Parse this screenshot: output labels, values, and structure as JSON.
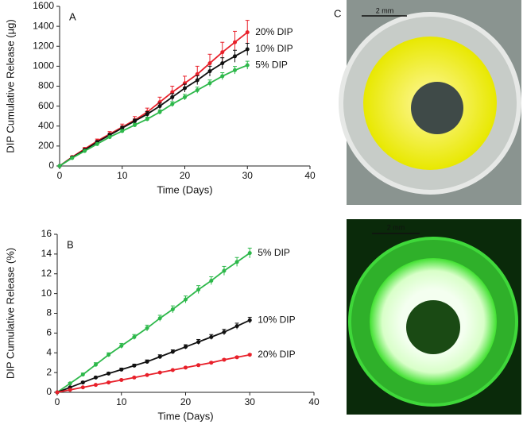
{
  "chart_data": [
    {
      "type": "line",
      "panel_label": "A",
      "x_label": "Time (Days)",
      "y_label": "DIP Cumulative Release (µg)",
      "x": [
        0,
        2,
        4,
        6,
        8,
        10,
        12,
        14,
        16,
        18,
        20,
        22,
        24,
        26,
        28,
        30
      ],
      "xlim": [
        0,
        40
      ],
      "xticks": [
        0,
        10,
        20,
        30,
        40
      ],
      "ylim": [
        0,
        1600
      ],
      "yticks": [
        0,
        200,
        400,
        600,
        800,
        1000,
        1200,
        1400,
        1600
      ],
      "series": [
        {
          "name": "20% DIP",
          "color": "#e8202a",
          "values": [
            0,
            90,
            170,
            250,
            320,
            390,
            460,
            540,
            640,
            740,
            830,
            920,
            1030,
            1140,
            1240,
            1340
          ],
          "errors": [
            0,
            10,
            15,
            20,
            25,
            30,
            35,
            40,
            50,
            60,
            70,
            80,
            90,
            100,
            110,
            120
          ]
        },
        {
          "name": "10% DIP",
          "color": "#111111",
          "values": [
            0,
            85,
            160,
            240,
            310,
            380,
            450,
            520,
            600,
            690,
            780,
            860,
            950,
            1030,
            1100,
            1170
          ],
          "errors": [
            0,
            8,
            10,
            12,
            15,
            18,
            20,
            25,
            30,
            35,
            40,
            45,
            50,
            55,
            60,
            60
          ]
        },
        {
          "name": "5% DIP",
          "color": "#2db84a",
          "values": [
            0,
            80,
            150,
            220,
            290,
            350,
            410,
            470,
            540,
            620,
            690,
            760,
            830,
            900,
            960,
            1010
          ],
          "errors": [
            0,
            5,
            8,
            10,
            12,
            15,
            18,
            20,
            22,
            25,
            28,
            30,
            32,
            35,
            38,
            40
          ]
        }
      ]
    },
    {
      "type": "line",
      "panel_label": "B",
      "x_label": "Time (Days)",
      "y_label": "DIP Cumulative Release (%)",
      "x": [
        0,
        2,
        4,
        6,
        8,
        10,
        12,
        14,
        16,
        18,
        20,
        22,
        24,
        26,
        28,
        30
      ],
      "xlim": [
        0,
        40
      ],
      "xticks": [
        0,
        10,
        20,
        30,
        40
      ],
      "ylim": [
        0,
        16
      ],
      "yticks": [
        0,
        2,
        4,
        6,
        8,
        10,
        12,
        14,
        16
      ],
      "series": [
        {
          "name": "5% DIP",
          "color": "#2db84a",
          "values": [
            0,
            0.9,
            1.8,
            2.8,
            3.8,
            4.7,
            5.6,
            6.5,
            7.5,
            8.4,
            9.4,
            10.4,
            11.3,
            12.3,
            13.2,
            14.1
          ],
          "errors": [
            0,
            0.1,
            0.15,
            0.2,
            0.2,
            0.25,
            0.25,
            0.3,
            0.3,
            0.35,
            0.35,
            0.4,
            0.4,
            0.45,
            0.45,
            0.5
          ]
        },
        {
          "name": "10% DIP",
          "color": "#111111",
          "values": [
            0,
            0.5,
            1.0,
            1.5,
            1.9,
            2.3,
            2.7,
            3.1,
            3.6,
            4.1,
            4.6,
            5.1,
            5.6,
            6.1,
            6.7,
            7.3
          ],
          "errors": [
            0,
            0.05,
            0.1,
            0.1,
            0.12,
            0.15,
            0.15,
            0.18,
            0.2,
            0.2,
            0.22,
            0.25,
            0.25,
            0.28,
            0.3,
            0.3
          ]
        },
        {
          "name": "20% DIP",
          "color": "#e8202a",
          "values": [
            0,
            0.25,
            0.5,
            0.75,
            1.0,
            1.25,
            1.5,
            1.75,
            2.0,
            2.25,
            2.5,
            2.75,
            3.0,
            3.3,
            3.55,
            3.8
          ],
          "errors": [
            0,
            0.02,
            0.03,
            0.04,
            0.05,
            0.05,
            0.06,
            0.06,
            0.07,
            0.07,
            0.08,
            0.08,
            0.09,
            0.09,
            0.1,
            0.1
          ]
        }
      ]
    }
  ],
  "panel_c": {
    "label": "C",
    "scale_bars": [
      "2 mm",
      "2 mm"
    ]
  }
}
